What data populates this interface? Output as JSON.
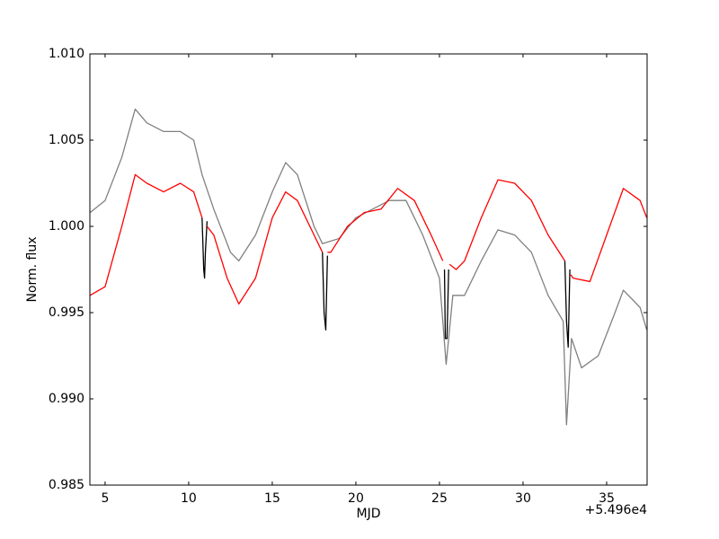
{
  "chart_data": {
    "type": "line",
    "x_label": "MJD",
    "y_label": "Norm. flux",
    "x_offset_label": "+5.496e4",
    "xlim": [
      4.09,
      37.42
    ],
    "xticks": [
      5,
      10,
      15,
      20,
      25,
      30,
      35
    ],
    "ylim": [
      0.985,
      1.01
    ],
    "yticks": [
      0.985,
      {
        "value": 0.99,
        "label": "0.990"
      },
      0.995,
      {
        "value": 1.0,
        "label": "1.000"
      },
      1.005,
      {
        "value": 1.01,
        "label": "1.010"
      }
    ],
    "series": [
      {
        "color": "#808080",
        "x": [
          4.1,
          5,
          6,
          6.8,
          7.5,
          8.5,
          9.5,
          10.3,
          10.8,
          11.5,
          12.5,
          13,
          14,
          15,
          15.8,
          16.5,
          17.5,
          18,
          19,
          20,
          21,
          22,
          23,
          24,
          25,
          25.4,
          25.8,
          26.5,
          27.5,
          28.5,
          29.5,
          30.5,
          31.5,
          32.4,
          32.6,
          32.9,
          33.5,
          34.5,
          35.5,
          36,
          37,
          37.4
        ],
        "values": [
          1.0008,
          1.0015,
          1.004,
          1.0068,
          1.006,
          1.0055,
          1.0055,
          1.005,
          1.003,
          1.001,
          0.9985,
          0.998,
          0.9995,
          1.002,
          1.0037,
          1.003,
          1.0,
          0.999,
          0.9993,
          1.0005,
          1.001,
          1.0015,
          1.0015,
          0.9995,
          0.997,
          0.992,
          0.996,
          0.996,
          0.998,
          0.9998,
          0.9995,
          0.9985,
          0.996,
          0.9945,
          0.9885,
          0.9935,
          0.9918,
          0.9925,
          0.995,
          0.9963,
          0.9953,
          0.994
        ]
      },
      {
        "color": "#000000",
        "x": [
          10.8,
          10.9,
          10.95,
          11.0,
          11.1,
          11.5,
          18.0,
          18.1,
          18.2,
          18.3,
          18.6,
          25.3,
          25.35,
          25.45,
          25.55,
          26.0,
          32.5,
          32.6,
          32.7,
          32.8
        ],
        "values": [
          1.0005,
          0.9975,
          0.997,
          0.9985,
          1.0003,
          null,
          0.9985,
          0.995,
          0.994,
          0.9983,
          null,
          0.9975,
          0.9935,
          0.9935,
          0.9975,
          null,
          0.998,
          0.9945,
          0.993,
          0.9975
        ]
      },
      {
        "color": "#ff0000",
        "x": [
          4.1,
          5,
          6,
          6.8,
          7.5,
          8.5,
          9.5,
          10.3,
          10.8,
          10.95,
          11.1,
          11.5,
          12.3,
          13,
          14,
          15,
          15.8,
          16.5,
          17.5,
          18.0,
          18.15,
          18.3,
          18.5,
          19.5,
          20.5,
          21.5,
          22.5,
          23.5,
          24.5,
          25.2,
          25.45,
          25.6,
          26,
          26.5,
          27.5,
          28.5,
          29.5,
          30.5,
          31.5,
          32.5,
          32.7,
          32.85,
          33,
          34,
          35,
          36,
          37,
          37.4
        ],
        "values": [
          0.996,
          0.9965,
          1.0,
          1.003,
          1.0025,
          1.002,
          1.0025,
          1.002,
          1.0005,
          null,
          1.0,
          0.9995,
          0.997,
          0.9955,
          0.997,
          1.0005,
          1.002,
          1.0015,
          0.9995,
          0.9985,
          null,
          0.9985,
          0.9985,
          1.0,
          1.0008,
          1.001,
          1.0022,
          1.0015,
          0.9995,
          0.998,
          null,
          0.9978,
          0.9975,
          0.998,
          1.0005,
          1.0027,
          1.0025,
          1.0015,
          0.9995,
          0.998,
          null,
          0.9972,
          0.997,
          0.9968,
          0.9995,
          1.0022,
          1.0015,
          1.0005
        ]
      }
    ]
  }
}
